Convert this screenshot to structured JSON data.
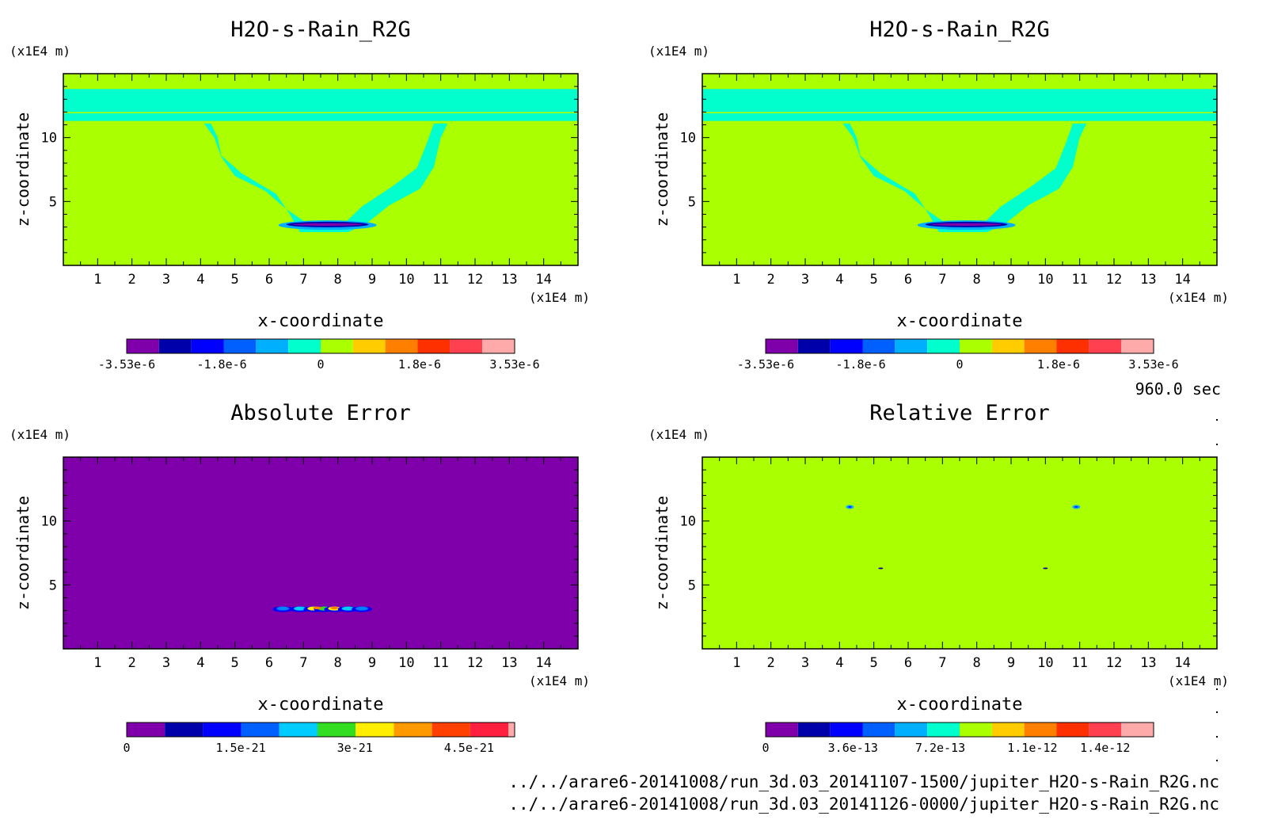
{
  "time_label": "960.0 sec",
  "file_lines": [
    "../../arare6-20141008/run_3d.03_20141107-1500/jupiter_H2O-s-Rain_R2G.nc",
    "../../arare6-20141008/run_3d.03_20141126-0000/jupiter_H2O-s-Rain_R2G.nc"
  ],
  "colors": {
    "background_field": "#aaff00",
    "error_background": "#7f00aa"
  },
  "chart_data": [
    {
      "type": "heatmap",
      "title": "H2O-s-Rain_R2G",
      "xlabel": "x-coordinate",
      "ylabel": "z-coordinate",
      "x_unit": "(x1E4 m)",
      "y_unit": "(x1E4 m)",
      "xlim": [
        0,
        15
      ],
      "ylim": [
        0,
        15
      ],
      "xticks": [
        1,
        2,
        3,
        4,
        5,
        6,
        7,
        8,
        9,
        10,
        11,
        12,
        13,
        14
      ],
      "yticks": [
        5,
        10
      ],
      "colorbar": {
        "colors": [
          "#7f00aa",
          "#0000aa",
          "#0000ff",
          "#0060ff",
          "#00b0ff",
          "#00ffcc",
          "#aaff00",
          "#ffcc00",
          "#ff8000",
          "#ff3000",
          "#ff4050",
          "#ffaaaa"
        ],
        "tick_labels": [
          "-3.53e-6",
          "-1.8e-6",
          "0",
          "1.8e-6",
          "3.53e-6"
        ],
        "tick_values": [
          -3.53e-06,
          -1.8e-06,
          0,
          1.8e-06,
          3.53e-06
        ],
        "range": [
          -3.53e-06,
          3.53e-06
        ]
      }
    },
    {
      "type": "heatmap",
      "title": "H2O-s-Rain_R2G",
      "xlabel": "x-coordinate",
      "ylabel": "z-coordinate",
      "x_unit": "(x1E4 m)",
      "y_unit": "(x1E4 m)",
      "xlim": [
        0,
        15
      ],
      "ylim": [
        0,
        15
      ],
      "xticks": [
        1,
        2,
        3,
        4,
        5,
        6,
        7,
        8,
        9,
        10,
        11,
        12,
        13,
        14
      ],
      "yticks": [
        5,
        10
      ],
      "colorbar": {
        "colors": [
          "#7f00aa",
          "#0000aa",
          "#0000ff",
          "#0060ff",
          "#00b0ff",
          "#00ffcc",
          "#aaff00",
          "#ffcc00",
          "#ff8000",
          "#ff3000",
          "#ff4050",
          "#ffaaaa"
        ],
        "tick_labels": [
          "-3.53e-6",
          "-1.8e-6",
          "0",
          "1.8e-6",
          "3.53e-6"
        ],
        "tick_values": [
          -3.53e-06,
          -1.8e-06,
          0,
          1.8e-06,
          3.53e-06
        ],
        "range": [
          -3.53e-06,
          3.53e-06
        ]
      }
    },
    {
      "type": "heatmap",
      "title": "Absolute Error",
      "xlabel": "x-coordinate",
      "ylabel": "z-coordinate",
      "x_unit": "(x1E4 m)",
      "y_unit": "(x1E4 m)",
      "xlim": [
        0,
        15
      ],
      "ylim": [
        0,
        15
      ],
      "xticks": [
        1,
        2,
        3,
        4,
        5,
        6,
        7,
        8,
        9,
        10,
        11,
        12,
        13,
        14
      ],
      "yticks": [
        5,
        10
      ],
      "colorbar": {
        "colors": [
          "#7f00aa",
          "#0000aa",
          "#0000ff",
          "#0060ff",
          "#00ccff",
          "#33dd22",
          "#ffee00",
          "#ff9900",
          "#ff4000",
          "#ff2040",
          "#ffaaaa"
        ],
        "tick_labels": [
          "0",
          "1.5e-21",
          "3e-21",
          "4.5e-21"
        ],
        "tick_values": [
          0,
          1.5e-21,
          3e-21,
          4.5e-21
        ],
        "range": [
          0,
          5.1e-21
        ]
      }
    },
    {
      "type": "heatmap",
      "title": "Relative Error",
      "xlabel": "x-coordinate",
      "ylabel": "z-coordinate",
      "x_unit": "(x1E4 m)",
      "y_unit": "(x1E4 m)",
      "xlim": [
        0,
        15
      ],
      "ylim": [
        0,
        15
      ],
      "xticks": [
        1,
        2,
        3,
        4,
        5,
        6,
        7,
        8,
        9,
        10,
        11,
        12,
        13,
        14
      ],
      "yticks": [
        5,
        10
      ],
      "colorbar": {
        "colors": [
          "#7f00aa",
          "#0000aa",
          "#0000ff",
          "#0060ff",
          "#00b0ff",
          "#00ffcc",
          "#aaff00",
          "#ffcc00",
          "#ff8000",
          "#ff3000",
          "#ff4050",
          "#ffaaaa"
        ],
        "tick_labels": [
          "0",
          "3.6e-13",
          "7.2e-13",
          "1.1e-12",
          "1.4e-12"
        ],
        "tick_values": [
          0,
          3.6e-13,
          7.2e-13,
          1.1e-12,
          1.4e-12
        ],
        "range": [
          0,
          1.6e-12
        ]
      }
    }
  ]
}
